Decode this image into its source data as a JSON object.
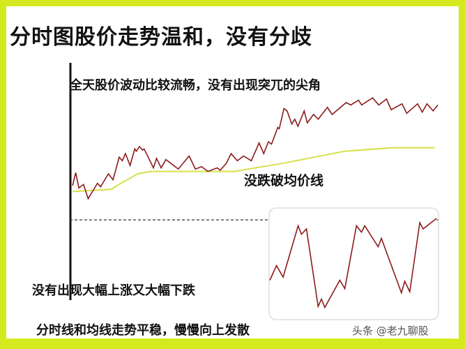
{
  "title": "分时图股价走势温和，没有分歧",
  "annotations": {
    "smooth": "全天股价波动比较流畅，没有出现突兀的尖角",
    "above_avg": "没跌破均价线",
    "no_swings": "没有出现大幅上涨又大幅下跌",
    "summary": "分时线和均线走势平稳，慢慢向上发散"
  },
  "watermark": "头条 @老九聊股",
  "colors": {
    "frame": "#d5ea1e",
    "price_line": "#8b1a1a",
    "avg_line": "#d6e04a",
    "axis": "#111111"
  },
  "chart_data": {
    "type": "line",
    "main": {
      "price": [
        [
          5,
          20
        ],
        [
          7,
          31
        ],
        [
          9,
          18
        ],
        [
          12,
          21
        ],
        [
          15,
          9
        ],
        [
          21,
          22
        ],
        [
          23,
          19
        ],
        [
          28,
          30
        ],
        [
          31,
          25
        ],
        [
          35,
          44
        ],
        [
          37,
          41
        ],
        [
          39,
          47
        ],
        [
          42,
          37
        ],
        [
          45,
          51
        ],
        [
          46,
          49
        ],
        [
          48,
          53
        ],
        [
          50,
          50
        ],
        [
          51,
          51
        ],
        [
          57,
          35
        ],
        [
          59,
          43
        ],
        [
          62,
          35
        ],
        [
          65,
          42
        ],
        [
          73,
          34
        ],
        [
          80,
          45
        ],
        [
          84,
          34
        ],
        [
          88,
          36
        ],
        [
          92,
          32
        ],
        [
          98,
          35
        ],
        [
          100,
          33
        ],
        [
          104,
          39
        ],
        [
          107,
          47
        ],
        [
          111,
          41
        ],
        [
          115,
          45
        ],
        [
          120,
          41
        ],
        [
          125,
          56
        ],
        [
          128,
          47
        ],
        [
          131,
          57
        ],
        [
          133,
          55
        ],
        [
          137,
          69
        ],
        [
          138,
          68
        ],
        [
          141,
          85
        ],
        [
          143,
          83
        ],
        [
          146,
          72
        ],
        [
          148,
          76
        ],
        [
          150,
          70
        ],
        [
          154,
          83
        ],
        [
          156,
          73
        ],
        [
          160,
          80
        ],
        [
          163,
          76
        ],
        [
          169,
          86
        ],
        [
          172,
          80
        ],
        [
          181,
          90
        ],
        [
          184,
          88
        ],
        [
          189,
          92
        ],
        [
          191,
          88
        ],
        [
          198,
          94
        ],
        [
          202,
          88
        ],
        [
          207,
          93
        ],
        [
          210,
          84
        ],
        [
          217,
          89
        ],
        [
          220,
          81
        ],
        [
          227,
          89
        ],
        [
          230,
          82
        ],
        [
          233,
          89
        ],
        [
          237,
          83
        ],
        [
          240,
          88
        ]
      ],
      "average": [
        [
          5,
          15
        ],
        [
          30,
          17
        ],
        [
          36,
          22
        ],
        [
          47,
          30
        ],
        [
          55,
          32
        ],
        [
          109,
          32
        ],
        [
          141,
          39
        ],
        [
          180,
          49
        ],
        [
          211,
          52
        ],
        [
          238,
          52
        ]
      ]
    },
    "inset": {
      "price": [
        [
          0,
          39
        ],
        [
          4,
          53
        ],
        [
          8,
          42
        ],
        [
          17,
          91
        ],
        [
          19,
          83
        ],
        [
          22,
          88
        ],
        [
          29,
          14
        ],
        [
          31,
          21
        ],
        [
          33,
          13
        ],
        [
          42,
          39
        ],
        [
          45,
          31
        ],
        [
          52,
          91
        ],
        [
          55,
          85
        ],
        [
          57,
          91
        ],
        [
          65,
          71
        ],
        [
          67,
          79
        ],
        [
          79,
          27
        ],
        [
          81,
          38
        ],
        [
          84,
          28
        ],
        [
          90,
          94
        ],
        [
          92,
          88
        ],
        [
          100,
          98
        ]
      ]
    }
  }
}
